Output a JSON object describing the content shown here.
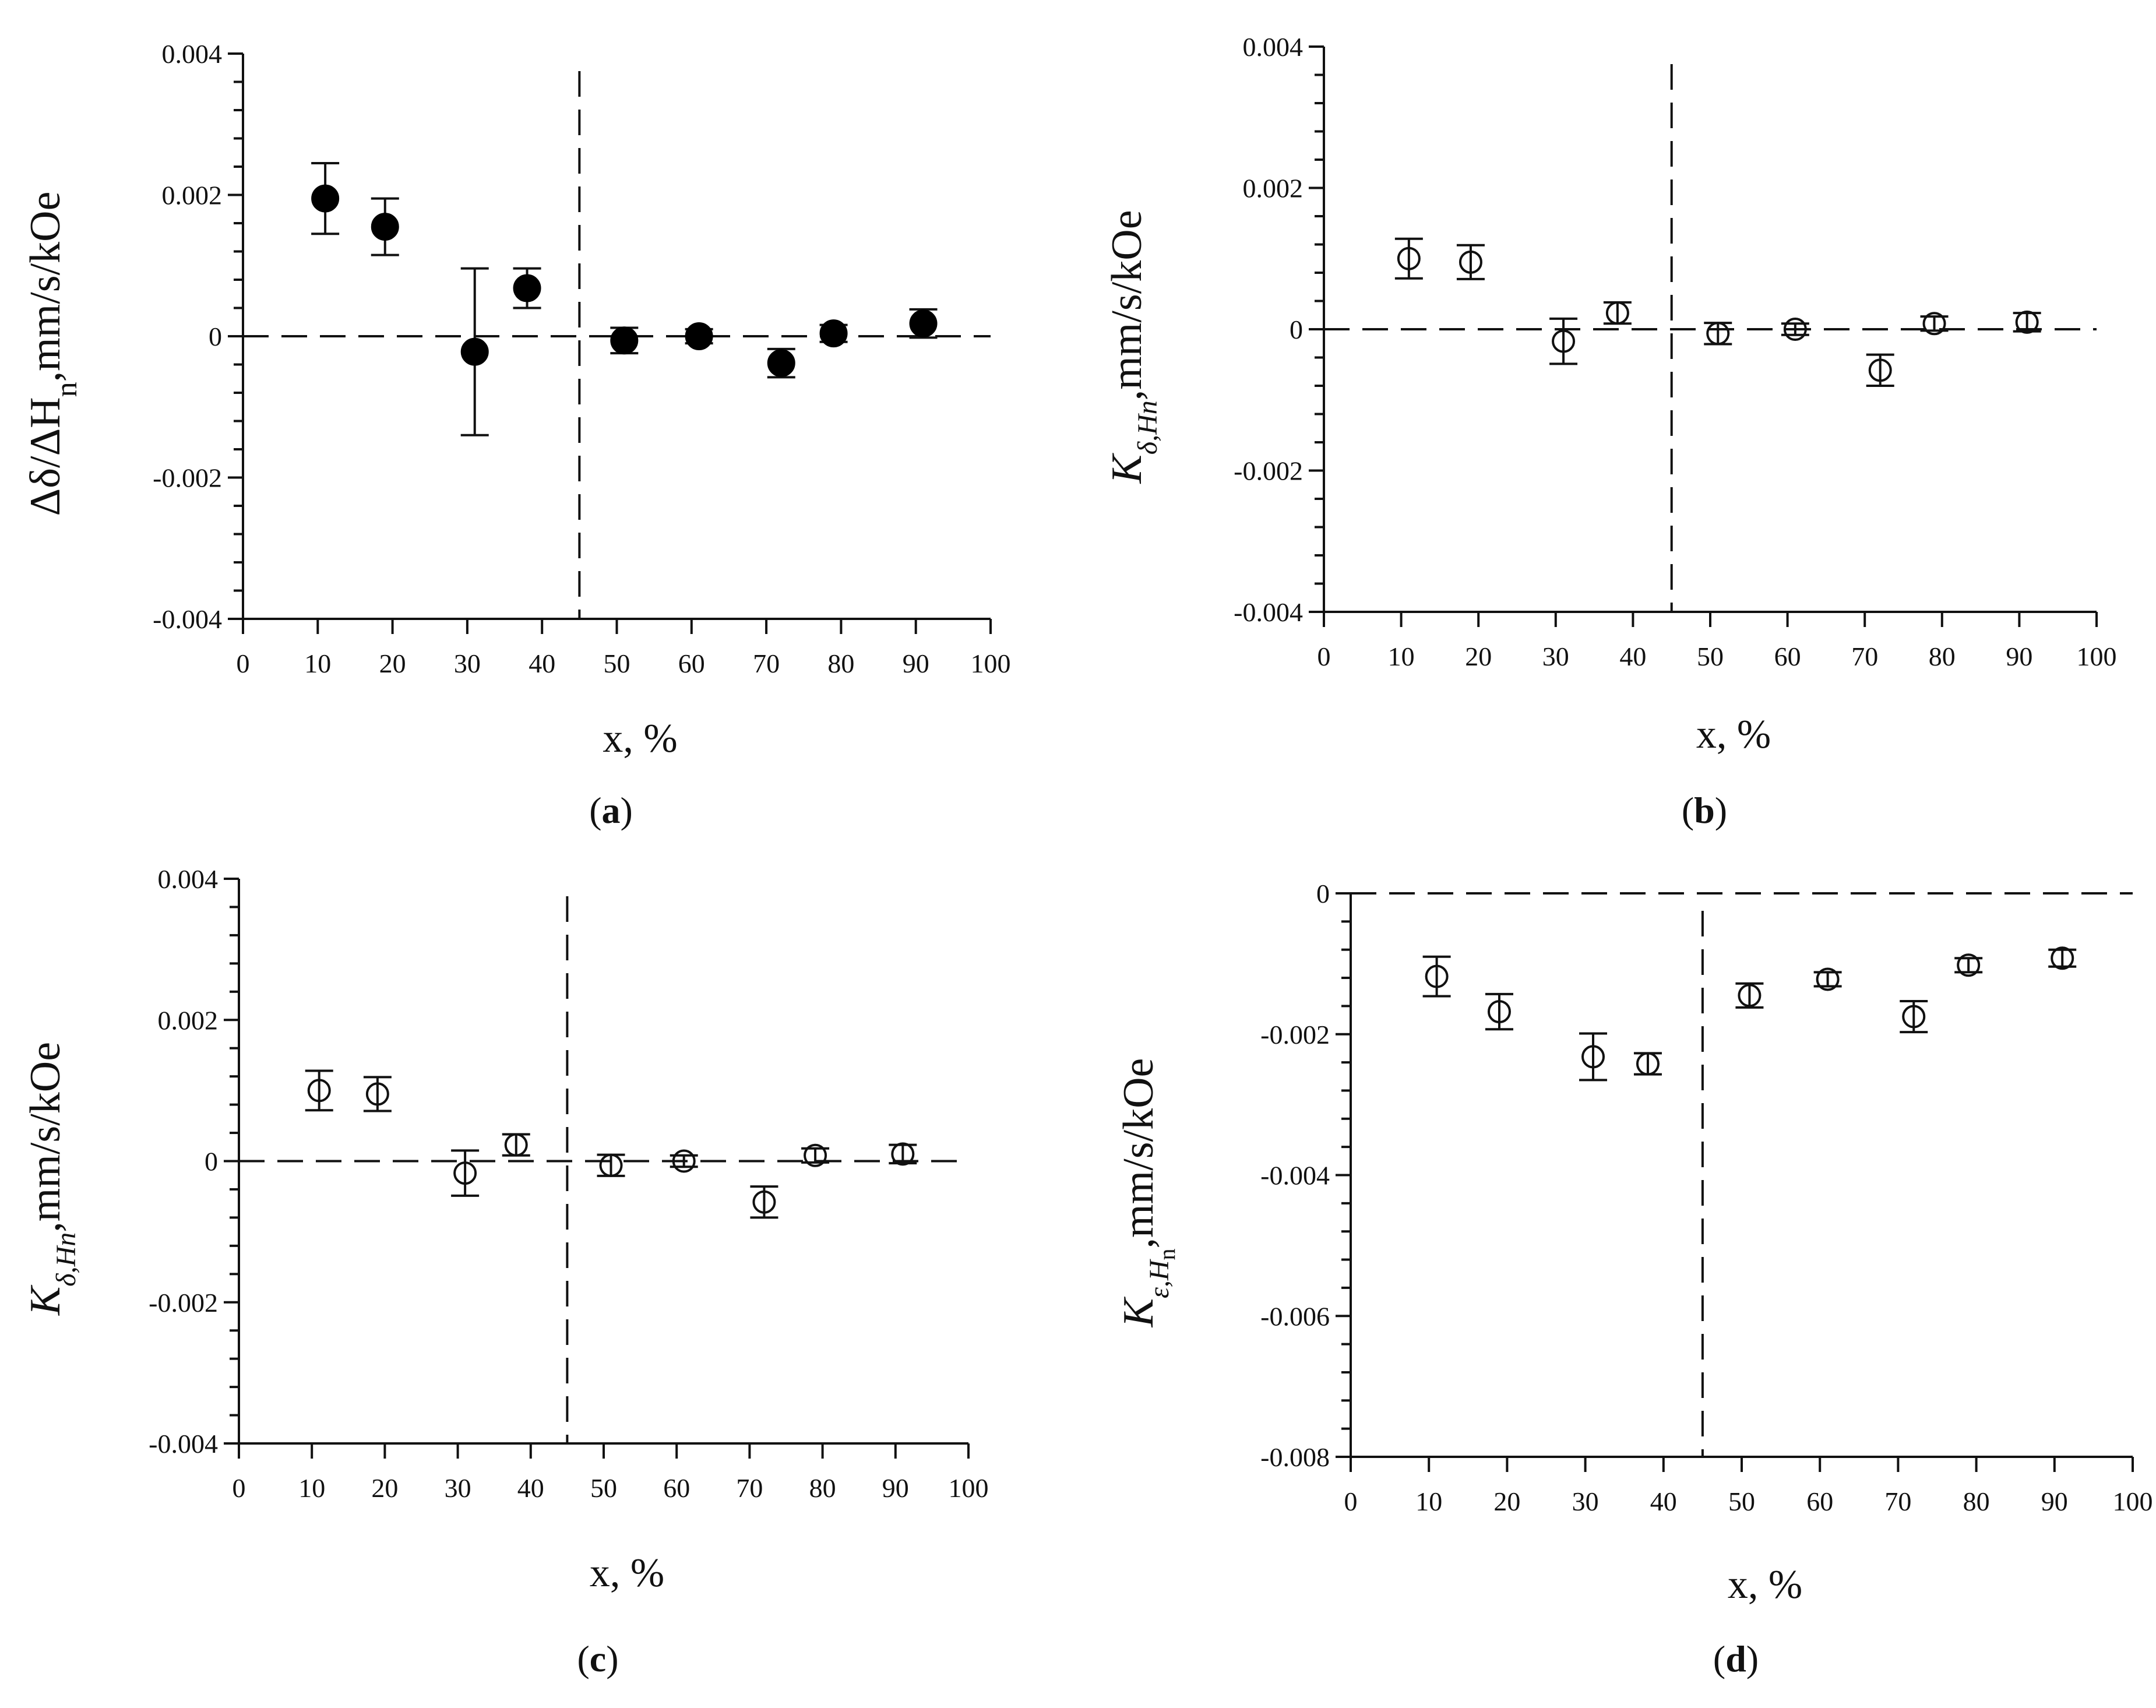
{
  "figure": {
    "panels": [
      "a",
      "b",
      "c",
      "d"
    ]
  },
  "chart_data": [
    {
      "id": "a",
      "type": "scatter",
      "label": "a",
      "ylabel": {
        "kind": "delta",
        "text": "Δδ/ΔH",
        "sub": "n",
        "unit": ",mm/s/kOe"
      },
      "xlabel": "x, %",
      "xlim": [
        0,
        100
      ],
      "ylim": [
        -0.004,
        0.004
      ],
      "xticks": [
        "0",
        "10",
        "20",
        "30",
        "40",
        "50",
        "60",
        "70",
        "80",
        "90",
        "100"
      ],
      "yticks": [
        {
          "value": 0.004,
          "label": "0.004"
        },
        {
          "value": 0.002,
          "label": "0.002"
        },
        {
          "value": 0,
          "label": "0"
        },
        {
          "value": -0.002,
          "label": "-0.002"
        },
        {
          "value": -0.004,
          "label": "-0.004"
        }
      ],
      "hline": 0,
      "vline": 45,
      "marker": "filled",
      "points": [
        {
          "x": 11,
          "y": 0.00195,
          "err": 0.0005
        },
        {
          "x": 19,
          "y": 0.00155,
          "err": 0.0004
        },
        {
          "x": 31,
          "y": -0.00022,
          "err": 0.00118
        },
        {
          "x": 38,
          "y": 0.00068,
          "err": 0.00028
        },
        {
          "x": 51,
          "y": -6e-05,
          "err": 0.00018
        },
        {
          "x": 61,
          "y": 0.0,
          "err": 0.0001
        },
        {
          "x": 72,
          "y": -0.00038,
          "err": 0.0002
        },
        {
          "x": 79,
          "y": 4e-05,
          "err": 0.00012
        },
        {
          "x": 91,
          "y": 0.00018,
          "err": 0.0002
        }
      ]
    },
    {
      "id": "b",
      "type": "scatter",
      "label": "b",
      "ylabel": {
        "kind": "K",
        "text": "K",
        "sub": "δ,Hn",
        "unit": ",mm/s/kOe"
      },
      "xlabel": "x, %",
      "xlim": [
        0,
        100
      ],
      "ylim": [
        -0.004,
        0.004
      ],
      "xticks": [
        "0",
        "10",
        "20",
        "30",
        "40",
        "50",
        "60",
        "70",
        "80",
        "90",
        "100"
      ],
      "yticks": [
        {
          "value": 0.004,
          "label": "0.004"
        },
        {
          "value": 0.002,
          "label": "0.002"
        },
        {
          "value": 0,
          "label": "0"
        },
        {
          "value": -0.002,
          "label": "-0.002"
        },
        {
          "value": -0.004,
          "label": "-0.004"
        }
      ],
      "hline": 0,
      "vline": 45,
      "marker": "open",
      "points": [
        {
          "x": 11,
          "y": 0.001,
          "err": 0.00028
        },
        {
          "x": 19,
          "y": 0.00095,
          "err": 0.00024
        },
        {
          "x": 31,
          "y": -0.00017,
          "err": 0.00032
        },
        {
          "x": 38,
          "y": 0.00023,
          "err": 0.00015
        },
        {
          "x": 51,
          "y": -6e-05,
          "err": 0.00015
        },
        {
          "x": 61,
          "y": 0.0,
          "err": 8e-05
        },
        {
          "x": 72,
          "y": -0.00058,
          "err": 0.00022
        },
        {
          "x": 79,
          "y": 8e-05,
          "err": 0.0001
        },
        {
          "x": 91,
          "y": 0.0001,
          "err": 0.00013
        }
      ]
    },
    {
      "id": "c",
      "type": "scatter",
      "label": "c",
      "ylabel": {
        "kind": "K",
        "text": "K",
        "sub": "δ,Hn",
        "unit": ",mm/s/kOe"
      },
      "xlabel": "x, %",
      "xlim": [
        0,
        100
      ],
      "ylim": [
        -0.004,
        0.004
      ],
      "xticks": [
        "0",
        "10",
        "20",
        "30",
        "40",
        "50",
        "60",
        "70",
        "80",
        "90",
        "100"
      ],
      "yticks": [
        {
          "value": 0.004,
          "label": "0.004"
        },
        {
          "value": 0.002,
          "label": "0.002"
        },
        {
          "value": 0,
          "label": "0"
        },
        {
          "value": -0.002,
          "label": "-0.002"
        },
        {
          "value": -0.004,
          "label": "-0.004"
        }
      ],
      "hline": 0,
      "vline": 45,
      "marker": "open",
      "points": [
        {
          "x": 11,
          "y": 0.001,
          "err": 0.00028
        },
        {
          "x": 19,
          "y": 0.00095,
          "err": 0.00024
        },
        {
          "x": 31,
          "y": -0.00017,
          "err": 0.00032
        },
        {
          "x": 38,
          "y": 0.00023,
          "err": 0.00015
        },
        {
          "x": 51,
          "y": -6e-05,
          "err": 0.00015
        },
        {
          "x": 61,
          "y": 0.0,
          "err": 8e-05
        },
        {
          "x": 72,
          "y": -0.00058,
          "err": 0.00022
        },
        {
          "x": 79,
          "y": 8e-05,
          "err": 0.0001
        },
        {
          "x": 91,
          "y": 0.0001,
          "err": 0.00013
        }
      ]
    },
    {
      "id": "d",
      "type": "scatter",
      "label": "d",
      "ylabel": {
        "kind": "Keps",
        "text": "K",
        "sub": "ε,H",
        "subsub": "n",
        "unit": ",mm/s/kOe"
      },
      "xlabel": "x, %",
      "xlim": [
        0,
        100
      ],
      "ylim": [
        -0.008,
        0
      ],
      "xticks": [
        "0",
        "10",
        "20",
        "30",
        "40",
        "50",
        "60",
        "70",
        "80",
        "90",
        "100"
      ],
      "yticks": [
        {
          "value": 0,
          "label": "0"
        },
        {
          "value": -0.002,
          "label": "-0.002"
        },
        {
          "value": -0.004,
          "label": "-0.004"
        },
        {
          "value": -0.006,
          "label": "-0.006"
        },
        {
          "value": -0.008,
          "label": "-0.008"
        }
      ],
      "hline": 0,
      "vline": 45,
      "marker": "open",
      "points": [
        {
          "x": 11,
          "y": -0.00118,
          "err": 0.00028
        },
        {
          "x": 19,
          "y": -0.00168,
          "err": 0.00025
        },
        {
          "x": 31,
          "y": -0.00232,
          "err": 0.00033
        },
        {
          "x": 38,
          "y": -0.00242,
          "err": 0.00015
        },
        {
          "x": 51,
          "y": -0.00145,
          "err": 0.00017
        },
        {
          "x": 61,
          "y": -0.00122,
          "err": 0.0001
        },
        {
          "x": 72,
          "y": -0.00175,
          "err": 0.00022
        },
        {
          "x": 79,
          "y": -0.00102,
          "err": 0.0001
        },
        {
          "x": 91,
          "y": -0.00092,
          "err": 0.00012
        }
      ]
    }
  ]
}
